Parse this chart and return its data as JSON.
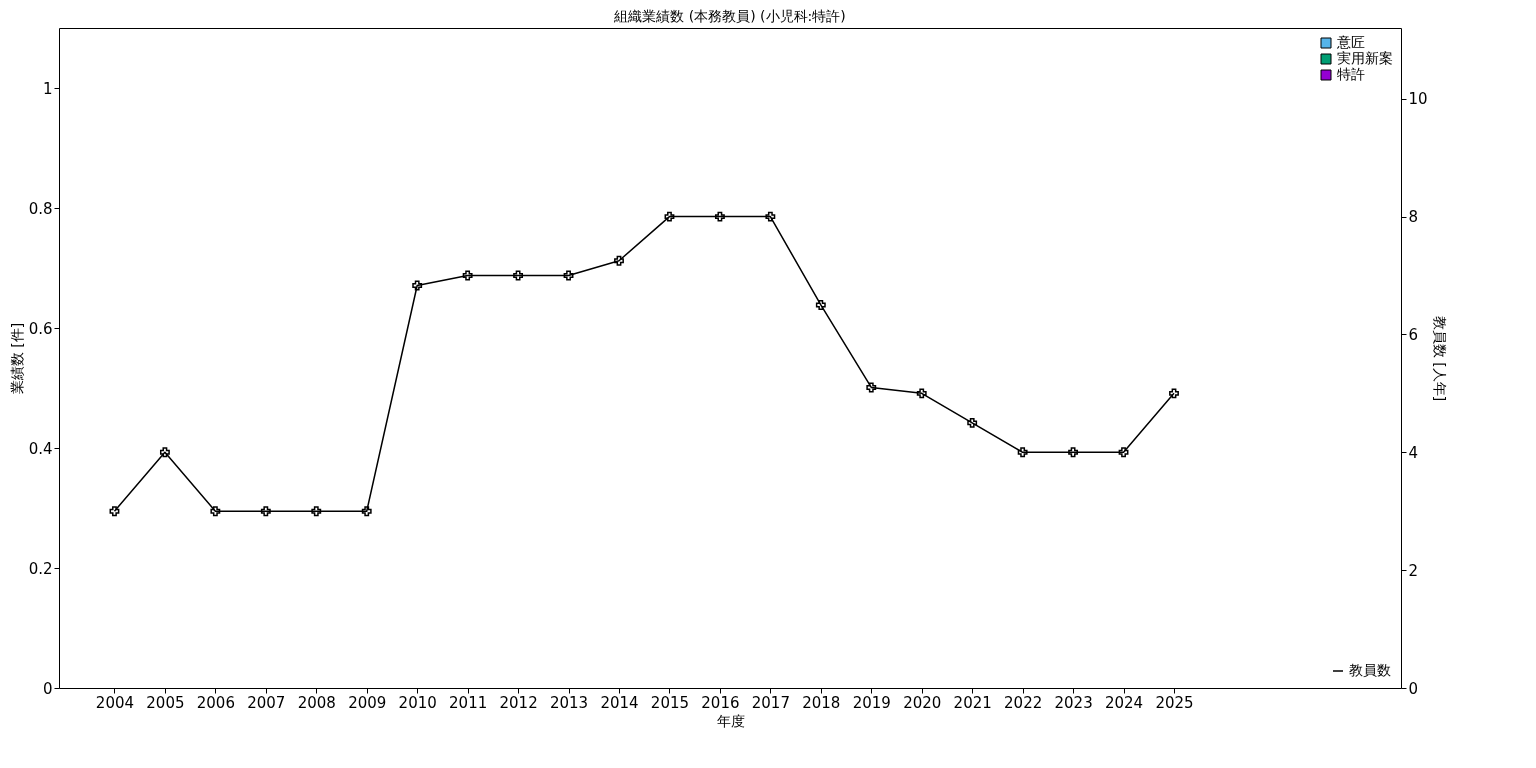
{
  "chart_data": {
    "type": "bar",
    "title": "組織業績数 (本務教員) (小児科:特許)",
    "xlabel": "年度",
    "ylabel": "業績数 [件]",
    "y2label": "教員数 [人年]",
    "x": [
      2004,
      2005,
      2006,
      2007,
      2008,
      2009,
      2010,
      2011,
      2012,
      2013,
      2014,
      2015,
      2016,
      2017,
      2018,
      2019,
      2020,
      2021,
      2022,
      2023,
      2024,
      2025
    ],
    "xlim": [
      2003,
      2029.4
    ],
    "xticks": [
      2004,
      2005,
      2006,
      2007,
      2008,
      2009,
      2010,
      2011,
      2012,
      2013,
      2014,
      2015,
      2016,
      2017,
      2018,
      2019,
      2020,
      2021,
      2022,
      2023,
      2024,
      2025
    ],
    "ylim": [
      0,
      1.1
    ],
    "yticks": [
      0,
      0.2,
      0.4,
      0.6,
      0.8,
      1
    ],
    "y2lim": [
      0,
      11.2
    ],
    "y2ticks": [
      0,
      2,
      4,
      6,
      8,
      10
    ],
    "series": [
      {
        "name": "意匠",
        "color": "#56b4e9",
        "values": [
          0,
          0,
          0,
          0,
          0,
          0,
          0,
          0,
          0,
          0,
          0,
          0,
          0,
          0,
          0,
          0,
          0,
          0,
          0,
          0,
          0,
          0
        ]
      },
      {
        "name": "実用新案",
        "color": "#009e73",
        "values": [
          0,
          0,
          0,
          0,
          0,
          0,
          0,
          0,
          0,
          0,
          0,
          0,
          0,
          0,
          0,
          0,
          0,
          0,
          0,
          0,
          0,
          0
        ]
      },
      {
        "name": "特許",
        "color": "#9400d3",
        "values": [
          0,
          0,
          0,
          0,
          0,
          0,
          0,
          0,
          0,
          0,
          0,
          0,
          0,
          0,
          0,
          0,
          0,
          0,
          0,
          0,
          0,
          0
        ]
      },
      {
        "name": "教員数",
        "color": "#000000",
        "type": "line",
        "axis": "y2",
        "marker": "cross",
        "values": [
          3,
          4,
          3,
          3,
          3,
          3,
          6.83,
          7,
          7,
          7,
          7.25,
          8,
          8,
          8,
          6.5,
          5.1,
          5,
          4.5,
          4,
          4,
          4,
          5
        ]
      }
    ],
    "legend": "top right"
  }
}
